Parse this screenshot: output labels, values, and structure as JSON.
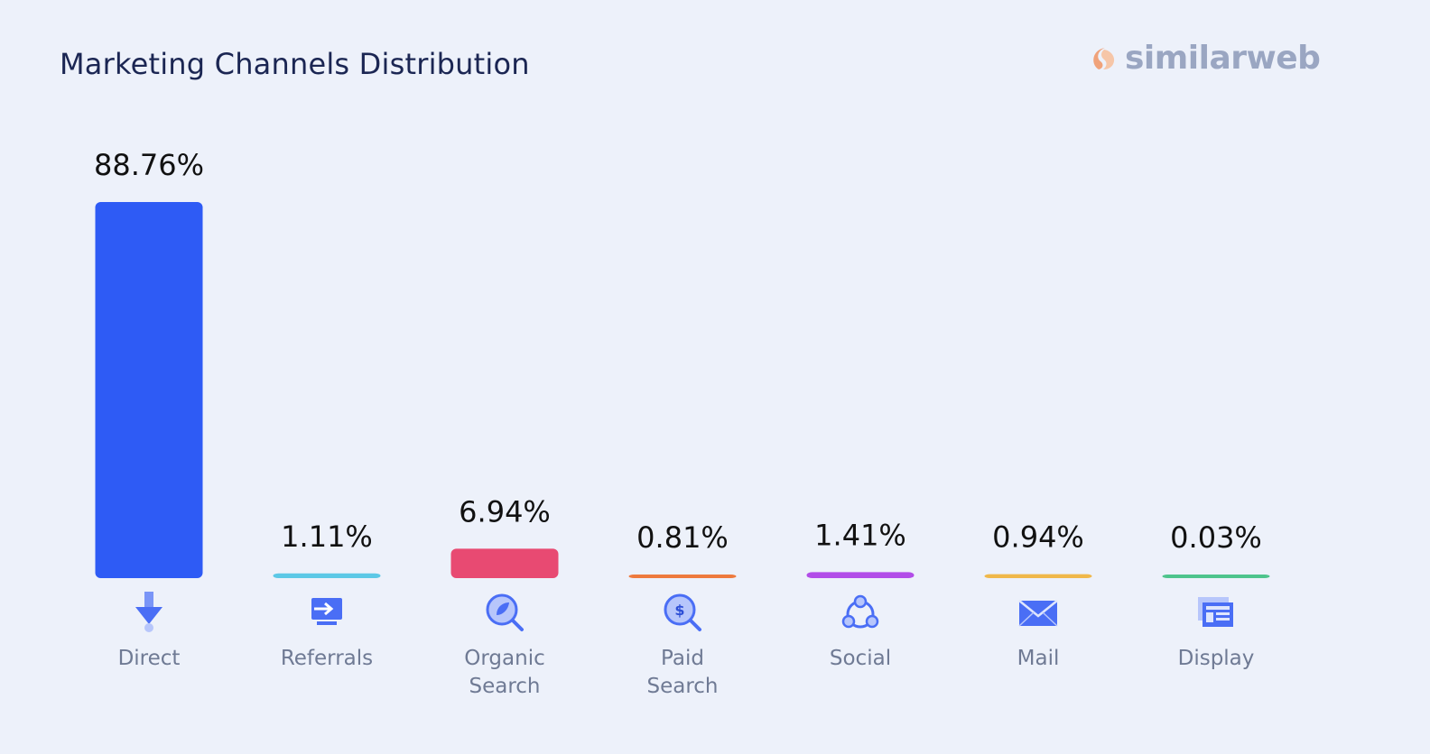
{
  "title": "Marketing Channels Distribution",
  "brand": {
    "name": "similarweb",
    "logo_icon": "similarweb-logo-icon",
    "color": "#9aa6c2",
    "accent": "#f0a27a"
  },
  "chart_data": {
    "type": "bar",
    "title": "Marketing Channels Distribution",
    "xlabel": "",
    "ylabel": "",
    "ylim": [
      0,
      88.76
    ],
    "grid": false,
    "value_suffix": "%",
    "categories": [
      {
        "label_lines": [
          "Direct"
        ],
        "icon": "direct-arrow-icon"
      },
      {
        "label_lines": [
          "Referrals"
        ],
        "icon": "referrals-icon"
      },
      {
        "label_lines": [
          "Organic",
          "Search"
        ],
        "icon": "organic-search-icon"
      },
      {
        "label_lines": [
          "Paid",
          "Search"
        ],
        "icon": "paid-search-icon"
      },
      {
        "label_lines": [
          "Social"
        ],
        "icon": "social-icon"
      },
      {
        "label_lines": [
          "Mail"
        ],
        "icon": "mail-icon"
      },
      {
        "label_lines": [
          "Display"
        ],
        "icon": "display-icon"
      }
    ],
    "values": [
      88.76,
      1.11,
      6.94,
      0.81,
      1.41,
      0.94,
      0.03
    ],
    "value_labels": [
      "88.76%",
      "1.11%",
      "6.94%",
      "0.81%",
      "1.41%",
      "0.94%",
      "0.03%"
    ],
    "colors": [
      "#2e5bf5",
      "#5cc8e6",
      "#e84a72",
      "#ee7a3d",
      "#b24de8",
      "#f0b84a",
      "#4ec48c"
    ]
  }
}
